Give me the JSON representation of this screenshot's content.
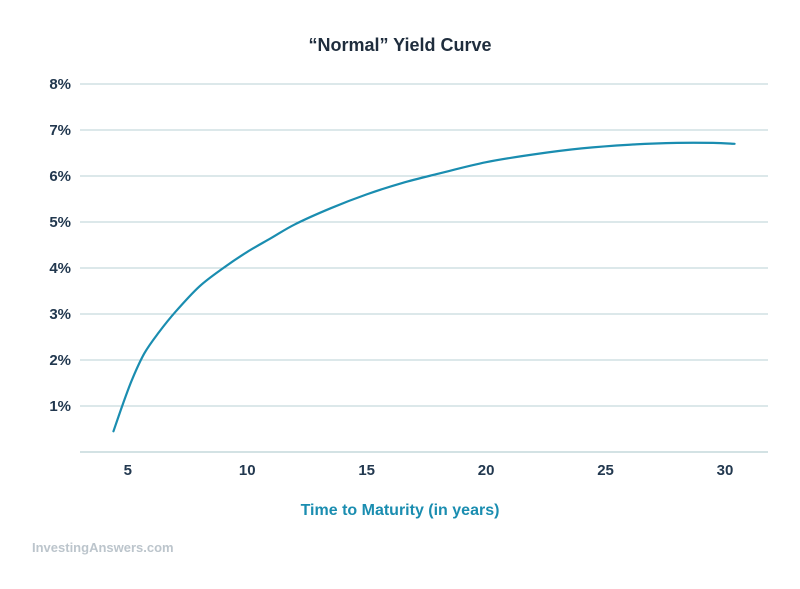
{
  "chart_data": {
    "type": "line",
    "title": "“Normal” Yield Curve",
    "xlabel": "Time to Maturity (in years)",
    "ylabel": "",
    "xlim": [
      3.0,
      31.8
    ],
    "ylim": [
      0,
      8
    ],
    "x_ticks": [
      "5",
      "10",
      "15",
      "20",
      "25",
      "30"
    ],
    "y_ticks": [
      "1%",
      "2%",
      "3%",
      "4%",
      "5%",
      "6%",
      "7%",
      "8%"
    ],
    "grid": true,
    "series": [
      {
        "color": "#1a8db0",
        "x": [
          4.4,
          4.8,
          5.2,
          5.7,
          6.3,
          7.0,
          8.0,
          9.0,
          10.0,
          11.0,
          12.0,
          13.5,
          15.0,
          16.5,
          18.0,
          20.0,
          22.0,
          24.0,
          26.0,
          28.0,
          29.5,
          30.4
        ],
        "y": [
          0.45,
          1.05,
          1.6,
          2.15,
          2.6,
          3.05,
          3.6,
          4.0,
          4.35,
          4.65,
          4.95,
          5.3,
          5.6,
          5.85,
          6.05,
          6.3,
          6.47,
          6.6,
          6.68,
          6.72,
          6.72,
          6.7
        ]
      }
    ]
  },
  "watermark": "InvestingAnswers.com",
  "colors": {
    "line": "#1a8db0",
    "xlabel": "#1a8db0",
    "grid": "#b9d0d4",
    "tick_text": "#22384f"
  }
}
